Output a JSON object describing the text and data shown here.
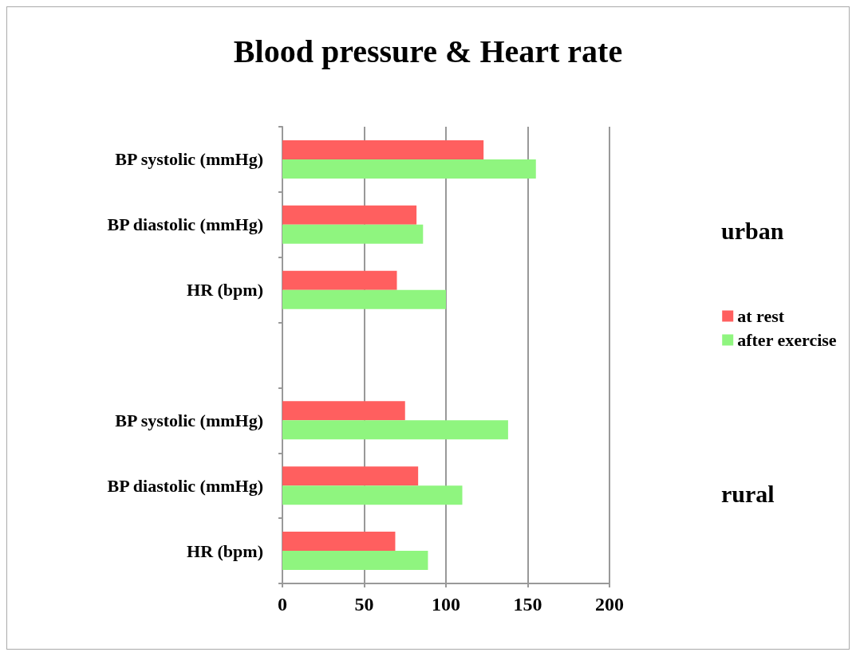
{
  "chart_data": {
    "type": "bar",
    "orientation": "horizontal",
    "title": "Blood pressure & Heart rate",
    "categories": [
      "BP systolic (mmHg)",
      "BP diastolic (mmHg)",
      "HR (bpm)",
      null,
      "BP systolic (mmHg)",
      "BP diastolic (mmHg)",
      "HR (bpm)"
    ],
    "series": [
      {
        "name": "at rest",
        "color": "#ff5f5f",
        "values": [
          123,
          82,
          70,
          null,
          75,
          83,
          69
        ]
      },
      {
        "name": "after exercise",
        "color": "#8ff57f",
        "values": [
          155,
          86,
          100,
          null,
          138,
          110,
          89
        ]
      }
    ],
    "xlim": [
      0,
      200
    ],
    "xticks": [
      0,
      50,
      100,
      150,
      200
    ],
    "grid": "x",
    "legend": "right",
    "annotations": [
      "urban",
      "rural"
    ]
  }
}
